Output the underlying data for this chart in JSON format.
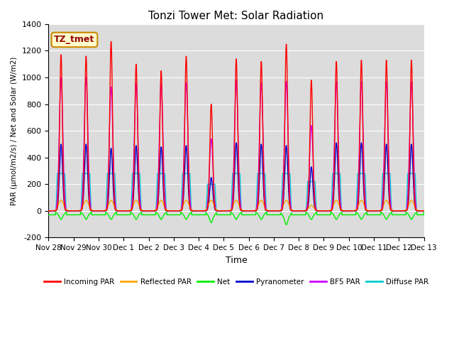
{
  "title": "Tonzi Tower Met: Solar Radiation",
  "ylabel": "PAR (μmol/m2/s) / Net and Solar (W/m2)",
  "xlabel": "Time",
  "ylim": [
    -200,
    1400
  ],
  "bg_color": "#dcdcdc",
  "annotation_text": "TZ_tmet",
  "annotation_bg": "#ffffcc",
  "annotation_border": "#cc8800",
  "xtick_labels": [
    "Nov 28",
    "Nov 29",
    "Nov 30",
    "Dec 1",
    "Dec 2",
    "Dec 3",
    "Dec 4",
    "Dec 5",
    "Dec 6",
    "Dec 7",
    "Dec 8",
    "Dec 9",
    "Dec 10",
    "Dec 11",
    "Dec 12",
    "Dec 13"
  ],
  "series": {
    "incoming_par": {
      "color": "#ff0000",
      "label": "Incoming PAR",
      "lw": 1.0
    },
    "reflected_par": {
      "color": "#ffa500",
      "label": "Reflected PAR",
      "lw": 1.0
    },
    "net": {
      "color": "#00ee00",
      "label": "Net",
      "lw": 1.0
    },
    "pyranometer": {
      "color": "#0000cc",
      "label": "Pyranometer",
      "lw": 1.0
    },
    "bf5_par": {
      "color": "#cc00ff",
      "label": "BF5 PAR",
      "lw": 1.0
    },
    "diffuse_par": {
      "color": "#00cccc",
      "label": "Diffuse PAR",
      "lw": 1.0
    }
  },
  "n_days": 15,
  "steps_per_day": 288,
  "day_start": 0.28,
  "day_end": 0.72,
  "day_peaks": {
    "incoming": [
      1170,
      1160,
      1270,
      1100,
      1050,
      1160,
      800,
      1140,
      1120,
      1250,
      980,
      1120,
      1130,
      1130,
      1130
    ],
    "reflected": [
      80,
      80,
      80,
      80,
      80,
      80,
      80,
      80,
      80,
      80,
      40,
      80,
      80,
      80,
      80
    ],
    "net_neg": [
      -80,
      -80,
      -80,
      -80,
      -80,
      -80,
      -110,
      -80,
      -80,
      -130,
      -80,
      -80,
      -80,
      -80,
      -80
    ],
    "pyranometer": [
      500,
      500,
      470,
      490,
      480,
      490,
      250,
      510,
      500,
      490,
      330,
      510,
      510,
      500,
      500
    ],
    "bf5_par": [
      1000,
      1000,
      930,
      960,
      950,
      960,
      540,
      980,
      960,
      970,
      640,
      970,
      970,
      970,
      970
    ],
    "diffuse": [
      280,
      280,
      280,
      280,
      280,
      280,
      200,
      280,
      280,
      280,
      220,
      280,
      280,
      280,
      280
    ]
  }
}
